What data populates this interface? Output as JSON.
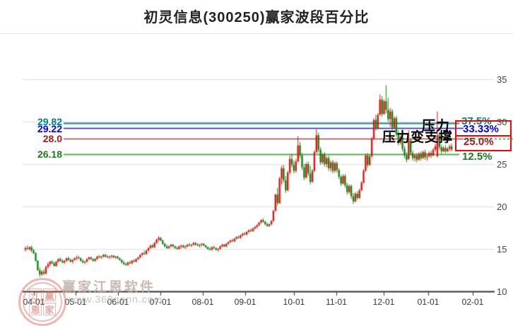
{
  "title": "初灵信息(300250)赢家波段百分比",
  "annotations": {
    "pressure": "压力",
    "pressure_to_support": "压力变支撑"
  },
  "watermark": {
    "brand": "赢家江恩软件",
    "url": "www.360gann.com",
    "seal_chars": [
      "江",
      "赢",
      "恩",
      "家"
    ]
  },
  "colors": {
    "up_candle": "#e01410",
    "down_candle": "#108312",
    "grid": "#dedede",
    "axis": "#333333",
    "highlight_box": "#ea0a0a"
  },
  "chart_data": {
    "type": "candlestick",
    "title": "初灵信息(300250)赢家波段百分比",
    "ylim": [
      10,
      36.5
    ],
    "grid": true,
    "y_ticks": [
      {
        "label": "35",
        "price": 35
      },
      {
        "label": "30",
        "price": 30
      },
      {
        "label": "25",
        "price": 25
      },
      {
        "label": "20",
        "price": 20
      },
      {
        "label": "15",
        "price": 15
      },
      {
        "label": "10",
        "price": 10
      }
    ],
    "x_tick_labels": [
      "04-01",
      "05-01",
      "06-01",
      "07-01",
      "08-01",
      "09-01",
      "10-01",
      "11-01",
      "12-01",
      "01-01",
      "02-01"
    ],
    "levels": [
      {
        "price": 29.82,
        "price_label": "29.82",
        "percent_label": "37.5%",
        "color": "#008b8b",
        "label_color": "#008080",
        "boxed": false
      },
      {
        "price": 29.22,
        "price_label": "29.22",
        "percent_label": "33.33%",
        "color": "#1b1be0",
        "label_color": "#0000ee",
        "boxed": true
      },
      {
        "price": 28.0,
        "price_label": "28.0",
        "percent_label": "25.0%",
        "color": "#a84444",
        "label_color": "#9b1c1c",
        "boxed": true,
        "right_dash_color": "#2f9e2f"
      },
      {
        "price": 26.18,
        "price_label": "26.18",
        "percent_label": "12.5%",
        "color": "#55ad55",
        "label_color": "#1d7a1d",
        "boxed": false
      }
    ],
    "candles_ohlc": [
      [
        14.9,
        15.3,
        14.7,
        15.1
      ],
      [
        15.1,
        15.4,
        14.9,
        15.0
      ],
      [
        15.0,
        15.3,
        14.8,
        15.2
      ],
      [
        15.2,
        15.4,
        14.6,
        14.8
      ],
      [
        14.8,
        15.0,
        14.4,
        14.5
      ],
      [
        14.5,
        14.6,
        13.5,
        13.6
      ],
      [
        13.6,
        13.7,
        12.4,
        12.5
      ],
      [
        12.5,
        12.8,
        11.7,
        12.0
      ],
      [
        12.0,
        12.5,
        11.8,
        12.3
      ],
      [
        12.3,
        12.6,
        11.9,
        12.1
      ],
      [
        12.1,
        13.0,
        12.0,
        12.9
      ],
      [
        12.9,
        13.4,
        12.7,
        13.2
      ],
      [
        13.2,
        13.6,
        13.0,
        13.5
      ],
      [
        13.5,
        13.7,
        13.2,
        13.3
      ],
      [
        13.3,
        13.5,
        12.9,
        13.0
      ],
      [
        13.0,
        13.6,
        12.9,
        13.5
      ],
      [
        13.5,
        13.9,
        13.4,
        13.8
      ],
      [
        13.8,
        14.0,
        13.5,
        13.6
      ],
      [
        13.6,
        13.8,
        13.3,
        13.4
      ],
      [
        13.4,
        13.7,
        13.2,
        13.6
      ],
      [
        13.6,
        14.0,
        13.5,
        13.9
      ],
      [
        13.9,
        14.1,
        13.6,
        13.7
      ],
      [
        13.7,
        13.9,
        13.4,
        13.5
      ],
      [
        13.5,
        13.8,
        13.3,
        13.7
      ],
      [
        13.7,
        14.0,
        13.6,
        13.9
      ],
      [
        13.9,
        14.2,
        13.7,
        14.0
      ],
      [
        14.0,
        14.2,
        13.8,
        13.9
      ],
      [
        13.9,
        14.0,
        13.5,
        13.6
      ],
      [
        13.6,
        13.8,
        13.3,
        13.4
      ],
      [
        13.4,
        13.6,
        13.2,
        13.5
      ],
      [
        13.5,
        13.9,
        13.4,
        13.8
      ],
      [
        13.8,
        14.1,
        13.7,
        14.0
      ],
      [
        14.0,
        14.1,
        13.7,
        13.8
      ],
      [
        13.8,
        13.9,
        13.5,
        13.6
      ],
      [
        13.6,
        13.9,
        13.5,
        13.8
      ],
      [
        13.8,
        14.2,
        13.7,
        14.1
      ],
      [
        14.1,
        14.3,
        13.9,
        14.0
      ],
      [
        14.0,
        14.2,
        13.8,
        14.1
      ],
      [
        14.1,
        14.4,
        14.0,
        14.3
      ],
      [
        14.3,
        14.4,
        14.0,
        14.1
      ],
      [
        14.1,
        14.3,
        13.9,
        14.0
      ],
      [
        14.0,
        14.2,
        13.8,
        14.1
      ],
      [
        14.1,
        14.3,
        13.9,
        14.2
      ],
      [
        14.2,
        14.3,
        13.9,
        14.0
      ],
      [
        14.0,
        14.2,
        13.8,
        14.1
      ],
      [
        14.1,
        14.2,
        13.8,
        13.9
      ],
      [
        13.9,
        14.0,
        13.6,
        13.7
      ],
      [
        13.7,
        13.8,
        13.3,
        13.4
      ],
      [
        13.4,
        13.6,
        13.1,
        13.2
      ],
      [
        13.2,
        13.4,
        13.0,
        13.1
      ],
      [
        13.1,
        13.5,
        13.0,
        13.4
      ],
      [
        13.4,
        13.6,
        13.2,
        13.3
      ],
      [
        13.3,
        13.7,
        13.2,
        13.6
      ],
      [
        13.6,
        13.8,
        13.4,
        13.5
      ],
      [
        13.5,
        13.9,
        13.4,
        13.8
      ],
      [
        13.8,
        14.1,
        13.7,
        14.0
      ],
      [
        14.0,
        14.4,
        13.9,
        14.3
      ],
      [
        14.3,
        14.6,
        14.2,
        14.5
      ],
      [
        14.5,
        14.8,
        14.3,
        14.4
      ],
      [
        14.4,
        14.9,
        14.3,
        14.8
      ],
      [
        14.8,
        15.2,
        14.7,
        15.1
      ],
      [
        15.1,
        15.5,
        15.0,
        15.4
      ],
      [
        15.4,
        15.6,
        15.1,
        15.2
      ],
      [
        15.2,
        15.8,
        15.1,
        15.7
      ],
      [
        15.7,
        16.2,
        15.6,
        16.1
      ],
      [
        16.1,
        16.5,
        15.9,
        16.3
      ],
      [
        16.3,
        16.4,
        15.9,
        16.0
      ],
      [
        16.0,
        16.1,
        15.5,
        15.6
      ],
      [
        15.6,
        15.7,
        15.2,
        15.3
      ],
      [
        15.3,
        15.5,
        15.0,
        15.1
      ],
      [
        15.1,
        15.4,
        15.0,
        15.3
      ],
      [
        15.3,
        15.6,
        15.2,
        15.5
      ],
      [
        15.5,
        15.6,
        15.2,
        15.3
      ],
      [
        15.3,
        15.4,
        15.0,
        15.1
      ],
      [
        15.1,
        15.3,
        14.9,
        15.0
      ],
      [
        15.0,
        15.4,
        14.9,
        15.3
      ],
      [
        15.3,
        15.5,
        15.1,
        15.4
      ],
      [
        15.4,
        15.5,
        15.1,
        15.2
      ],
      [
        15.2,
        15.4,
        15.0,
        15.3
      ],
      [
        15.3,
        15.6,
        15.2,
        15.5
      ],
      [
        15.5,
        15.7,
        15.3,
        15.4
      ],
      [
        15.4,
        15.6,
        15.2,
        15.5
      ],
      [
        15.5,
        15.8,
        15.4,
        15.7
      ],
      [
        15.7,
        15.8,
        15.4,
        15.5
      ],
      [
        15.5,
        15.7,
        15.3,
        15.4
      ],
      [
        15.4,
        15.6,
        15.2,
        15.5
      ],
      [
        15.5,
        15.7,
        15.3,
        15.6
      ],
      [
        15.6,
        15.7,
        15.3,
        15.4
      ],
      [
        15.4,
        15.5,
        15.1,
        15.2
      ],
      [
        15.2,
        15.3,
        14.9,
        15.0
      ],
      [
        15.0,
        15.2,
        14.8,
        14.9
      ],
      [
        14.9,
        15.3,
        14.8,
        15.2
      ],
      [
        15.2,
        15.4,
        15.0,
        15.1
      ],
      [
        15.1,
        15.2,
        14.8,
        14.9
      ],
      [
        14.9,
        15.1,
        14.7,
        15.0
      ],
      [
        15.0,
        15.4,
        14.9,
        15.3
      ],
      [
        15.3,
        15.6,
        15.2,
        15.5
      ],
      [
        15.5,
        15.6,
        15.2,
        15.3
      ],
      [
        15.3,
        15.7,
        15.2,
        15.6
      ],
      [
        15.6,
        15.9,
        15.5,
        15.8
      ],
      [
        15.8,
        16.1,
        15.7,
        16.0
      ],
      [
        16.0,
        16.2,
        15.8,
        15.9
      ],
      [
        15.9,
        16.3,
        15.8,
        16.2
      ],
      [
        16.2,
        16.5,
        16.1,
        16.4
      ],
      [
        16.4,
        16.6,
        16.2,
        16.3
      ],
      [
        16.3,
        16.7,
        16.2,
        16.6
      ],
      [
        16.6,
        16.9,
        16.5,
        16.8
      ],
      [
        16.8,
        17.0,
        16.6,
        16.7
      ],
      [
        16.7,
        17.1,
        16.6,
        17.0
      ],
      [
        17.0,
        17.3,
        16.9,
        17.2
      ],
      [
        17.2,
        17.4,
        17.0,
        17.1
      ],
      [
        17.1,
        17.5,
        17.0,
        17.4
      ],
      [
        17.4,
        17.7,
        17.3,
        17.6
      ],
      [
        17.6,
        17.9,
        17.4,
        17.8
      ],
      [
        17.8,
        18.2,
        17.7,
        18.1
      ],
      [
        18.1,
        18.5,
        18.0,
        18.4
      ],
      [
        18.4,
        18.6,
        18.1,
        18.2
      ],
      [
        18.2,
        18.3,
        17.8,
        17.9
      ],
      [
        17.9,
        18.1,
        17.6,
        17.7
      ],
      [
        17.7,
        18.0,
        17.6,
        17.9
      ],
      [
        17.9,
        18.4,
        17.8,
        18.3
      ],
      [
        18.3,
        19.6,
        18.2,
        19.5
      ],
      [
        19.5,
        21.5,
        19.4,
        21.4
      ],
      [
        21.4,
        22.2,
        20.1,
        20.4
      ],
      [
        20.4,
        23.5,
        20.3,
        23.3
      ],
      [
        23.3,
        24.8,
        22.6,
        24.5
      ],
      [
        24.5,
        24.9,
        22.8,
        23.1
      ],
      [
        23.1,
        23.6,
        21.6,
        21.9
      ],
      [
        21.9,
        24.2,
        21.8,
        24.0
      ],
      [
        24.0,
        26.0,
        23.8,
        25.6
      ],
      [
        25.6,
        26.2,
        24.6,
        24.9
      ],
      [
        24.9,
        25.4,
        23.9,
        24.2
      ],
      [
        24.2,
        25.6,
        24.0,
        25.3
      ],
      [
        25.3,
        28.3,
        25.2,
        27.2
      ],
      [
        27.2,
        27.6,
        25.7,
        26.0
      ],
      [
        26.0,
        26.3,
        24.3,
        24.6
      ],
      [
        24.6,
        25.0,
        23.1,
        23.4
      ],
      [
        23.4,
        25.2,
        23.3,
        25.0
      ],
      [
        25.0,
        25.3,
        23.6,
        23.9
      ],
      [
        23.9,
        24.8,
        22.6,
        22.9
      ],
      [
        22.9,
        24.4,
        22.8,
        24.2
      ],
      [
        24.2,
        26.6,
        24.1,
        26.4
      ],
      [
        26.4,
        29.1,
        26.3,
        28.4
      ],
      [
        28.4,
        28.7,
        26.4,
        26.7
      ],
      [
        26.7,
        27.0,
        24.9,
        25.2
      ],
      [
        25.2,
        26.3,
        25.0,
        26.1
      ],
      [
        26.1,
        26.4,
        24.7,
        25.0
      ],
      [
        25.0,
        25.9,
        24.6,
        25.7
      ],
      [
        25.7,
        26.0,
        24.2,
        24.5
      ],
      [
        24.5,
        25.4,
        24.1,
        25.2
      ],
      [
        25.2,
        25.5,
        23.9,
        24.2
      ],
      [
        24.2,
        25.3,
        24.0,
        25.1
      ],
      [
        25.1,
        25.3,
        24.0,
        24.3
      ],
      [
        24.3,
        24.5,
        23.2,
        23.5
      ],
      [
        23.5,
        23.7,
        22.4,
        22.7
      ],
      [
        22.7,
        23.8,
        22.6,
        23.6
      ],
      [
        23.6,
        23.8,
        22.2,
        22.5
      ],
      [
        22.5,
        22.8,
        21.4,
        21.7
      ],
      [
        21.7,
        22.6,
        21.5,
        22.4
      ],
      [
        22.4,
        22.6,
        20.9,
        21.2
      ],
      [
        21.2,
        21.6,
        20.3,
        20.6
      ],
      [
        20.6,
        21.7,
        20.5,
        21.5
      ],
      [
        21.5,
        21.8,
        20.8,
        21.0
      ],
      [
        21.0,
        22.1,
        20.9,
        21.9
      ],
      [
        21.9,
        23.0,
        21.8,
        22.8
      ],
      [
        22.8,
        24.4,
        22.7,
        24.2
      ],
      [
        24.2,
        26.2,
        24.1,
        26.0
      ],
      [
        26.0,
        26.3,
        24.6,
        24.9
      ],
      [
        24.9,
        26.1,
        24.8,
        25.9
      ],
      [
        25.9,
        28.2,
        25.8,
        28.0
      ],
      [
        28.0,
        30.4,
        27.9,
        30.2
      ],
      [
        30.2,
        30.8,
        28.9,
        29.2
      ],
      [
        29.2,
        31.0,
        29.1,
        30.8
      ],
      [
        30.8,
        33.2,
        30.7,
        32.6
      ],
      [
        32.6,
        33.0,
        30.6,
        30.9
      ],
      [
        30.9,
        32.6,
        30.8,
        32.4
      ],
      [
        32.4,
        34.3,
        31.0,
        31.4
      ],
      [
        31.4,
        32.8,
        30.0,
        30.3
      ],
      [
        30.3,
        31.6,
        29.4,
        31.2
      ],
      [
        31.2,
        31.5,
        29.0,
        29.3
      ],
      [
        29.3,
        30.6,
        29.1,
        30.4
      ],
      [
        30.4,
        30.7,
        28.2,
        28.5
      ],
      [
        28.5,
        29.0,
        27.2,
        27.5
      ],
      [
        27.5,
        28.4,
        27.3,
        28.2
      ],
      [
        28.2,
        28.5,
        26.5,
        26.8
      ],
      [
        26.8,
        27.1,
        25.7,
        26.0
      ],
      [
        26.0,
        26.4,
        25.2,
        25.5
      ],
      [
        25.6,
        29.0,
        25.5,
        27.8
      ],
      [
        27.8,
        28.0,
        26.0,
        26.3
      ],
      [
        26.3,
        26.6,
        25.4,
        25.7
      ],
      [
        25.7,
        26.2,
        25.3,
        26.0
      ],
      [
        26.0,
        26.3,
        25.2,
        25.5
      ],
      [
        25.5,
        26.4,
        25.4,
        26.2
      ],
      [
        26.2,
        26.5,
        25.4,
        25.7
      ],
      [
        25.7,
        26.6,
        25.6,
        26.4
      ],
      [
        26.4,
        26.7,
        25.5,
        25.8
      ],
      [
        25.8,
        26.3,
        25.4,
        25.9
      ],
      [
        25.9,
        26.5,
        25.8,
        26.3
      ],
      [
        26.3,
        26.6,
        25.7,
        26.0
      ],
      [
        26.0,
        26.9,
        25.9,
        26.7
      ],
      [
        26.7,
        27.4,
        26.5,
        27.1
      ],
      [
        25.9,
        31.2,
        25.8,
        28.4
      ],
      [
        28.4,
        28.7,
        26.7,
        27.0
      ],
      [
        27.0,
        27.3,
        26.2,
        26.5
      ],
      [
        26.5,
        27.1,
        26.4,
        26.9
      ],
      [
        26.9,
        27.2,
        26.3,
        26.5
      ],
      [
        26.5,
        27.0,
        26.4,
        26.8
      ],
      [
        26.8,
        27.3,
        26.6,
        27.1
      ],
      [
        27.1,
        27.4,
        26.5,
        26.7
      ]
    ]
  }
}
